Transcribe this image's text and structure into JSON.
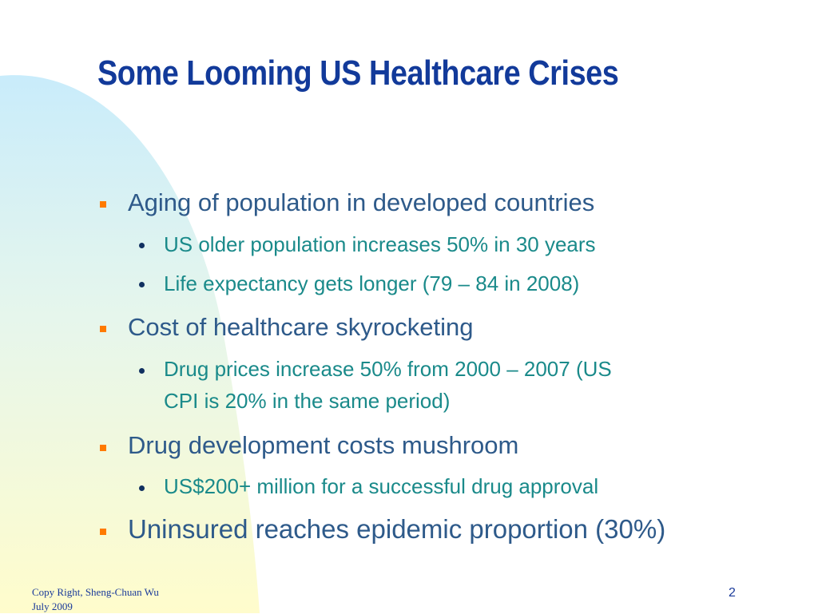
{
  "slide": {
    "title": "Some Looming US Healthcare Crises",
    "bullets": [
      {
        "text": "Aging of population in developed countries",
        "sub": [
          "US older population increases 50% in 30 years",
          "Life expectancy gets longer (79 – 84 in 2008)"
        ]
      },
      {
        "text": "Cost of healthcare skyrocketing",
        "sub": [
          "Drug prices increase 50% from 2000 – 2007 (US",
          "CPI is 20% in the same period)"
        ]
      },
      {
        "text": "Drug development costs mushroom",
        "sub": [
          "US$200+ million for a successful drug approval"
        ]
      },
      {
        "text": "Uninsured reaches epidemic proportion (30%)",
        "sub": []
      }
    ]
  },
  "footer": {
    "copyright": "Copy Right, Sheng-Chuan Wu",
    "date": "July 2009",
    "page_number": "2"
  },
  "colors": {
    "title": "#123a9a",
    "level1_text": "#2e5a8a",
    "level2_text": "#1a8a8a",
    "level1_bullet": "#ff7a00",
    "level2_bullet": "#103060"
  }
}
